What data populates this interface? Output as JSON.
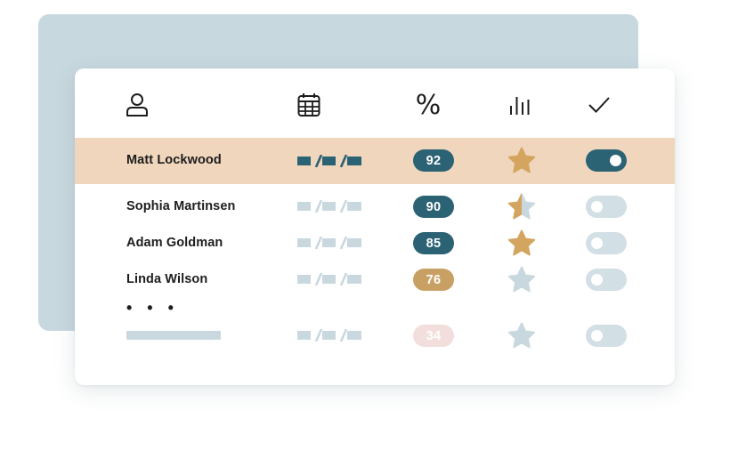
{
  "headers": [
    {
      "icon": "user-icon"
    },
    {
      "icon": "calendar-icon"
    },
    {
      "icon": "percent-icon",
      "label": "%"
    },
    {
      "icon": "bar-chart-icon"
    },
    {
      "icon": "checkmark-icon"
    }
  ],
  "rows": [
    {
      "name": "Matt Lockwood",
      "score": "92",
      "score_color": "#2b6274",
      "rating": "full",
      "toggle_on": true,
      "highlighted": true
    },
    {
      "name": "Sophia Martinsen",
      "score": "90",
      "score_color": "#2b6274",
      "rating": "half",
      "toggle_on": false,
      "highlighted": false
    },
    {
      "name": "Adam Goldman",
      "score": "85",
      "score_color": "#2b6274",
      "rating": "full",
      "toggle_on": false,
      "highlighted": false
    },
    {
      "name": "Linda Wilson",
      "score": "76",
      "score_color": "#c9a063",
      "rating": "empty",
      "toggle_on": false,
      "highlighted": false
    },
    {
      "name": "",
      "score": "34",
      "score_color": "#f2dedd",
      "rating": "empty",
      "toggle_on": false,
      "highlighted": false
    }
  ],
  "more_indicator": "• • •",
  "colors": {
    "backdrop": "#c8d8df",
    "highlight_row": "#f0d6bd",
    "accent_dark": "#2b6274",
    "accent_gold": "#d3a55e",
    "muted": "#c9d8df",
    "toggle_off": "#d2dfe4"
  }
}
